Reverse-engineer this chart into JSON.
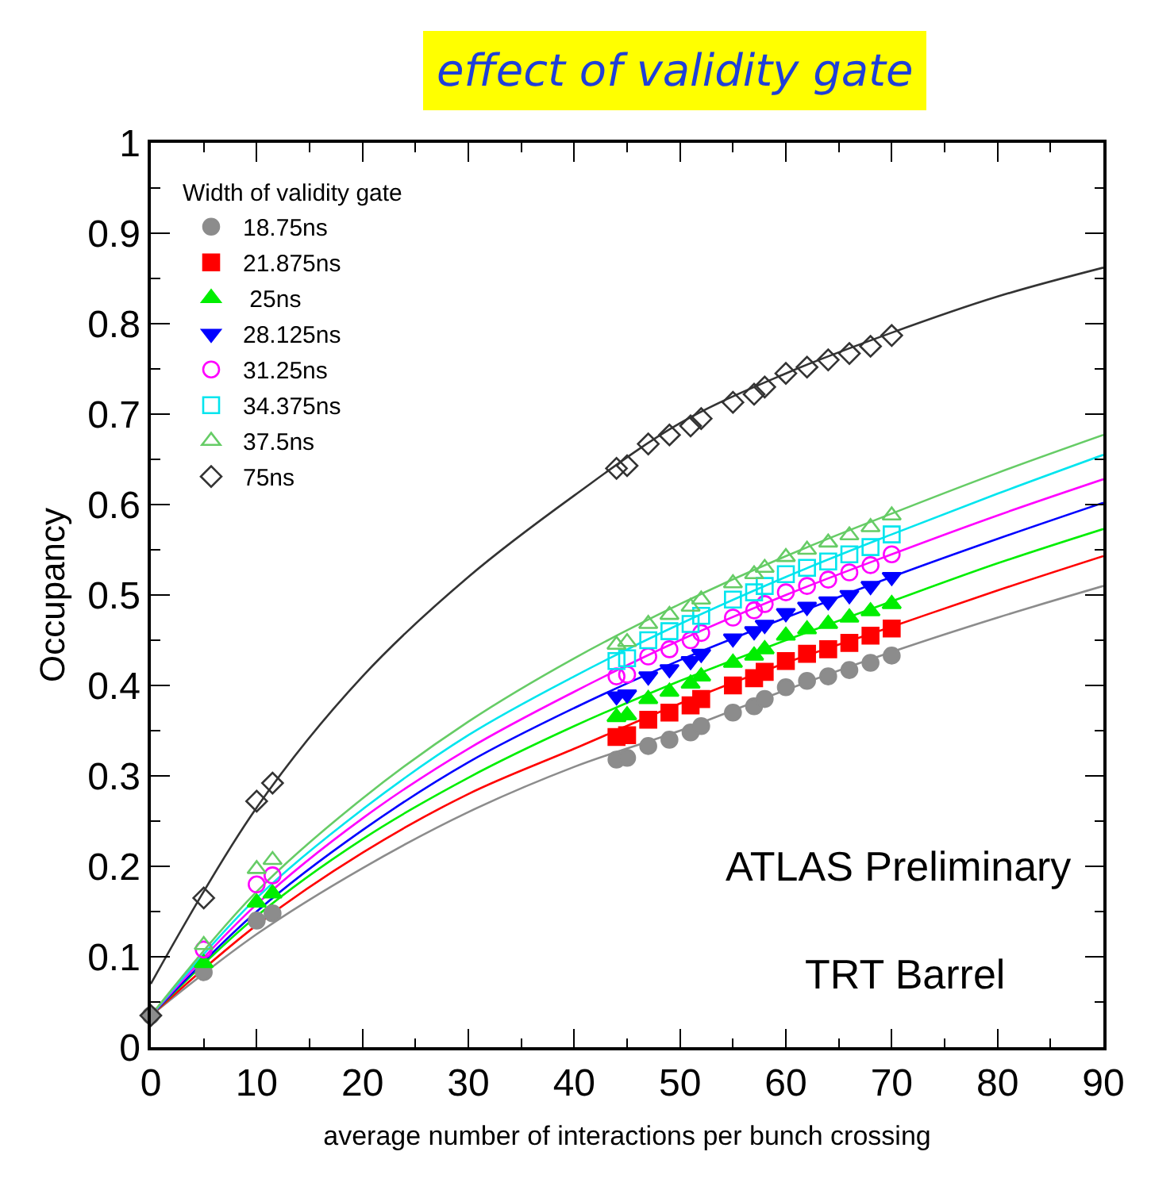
{
  "chart_data": {
    "type": "scatter",
    "title": "effect of validity gate",
    "xlabel": "average number of interactions per bunch crossing",
    "ylabel": "Occupancy",
    "legend_title": "Width of validity gate",
    "xlim": [
      0,
      90
    ],
    "xticks": [
      0,
      10,
      20,
      30,
      40,
      50,
      60,
      70,
      80,
      90
    ],
    "ylim": [
      0,
      1
    ],
    "yticks": [
      0,
      0.1,
      0.2,
      0.3,
      0.4,
      0.5,
      0.6,
      0.7,
      0.8,
      0.9,
      1
    ],
    "grid": false,
    "legend": "top left",
    "annotations": [
      "ATLAS Preliminary",
      "TRT Barrel"
    ],
    "series": [
      {
        "name": "18.75ns",
        "color": "#8c8c8c",
        "marker": "circle",
        "x": [
          0,
          5,
          10,
          11.5,
          44,
          45,
          47,
          49,
          51,
          52,
          55,
          57,
          58,
          60,
          62,
          64,
          66,
          68,
          70
        ],
        "values": [
          0.035,
          0.083,
          0.14,
          0.148,
          0.318,
          0.32,
          0.333,
          0.34,
          0.348,
          0.355,
          0.37,
          0.377,
          0.385,
          0.398,
          0.405,
          0.41,
          0.417,
          0.425,
          0.433
        ]
      },
      {
        "name": "21.875ns",
        "color": "#ff0000",
        "marker": "square",
        "x": [
          44,
          45,
          47,
          49,
          51,
          52,
          55,
          57,
          58,
          60,
          62,
          64,
          66,
          68,
          70
        ],
        "values": [
          0.343,
          0.345,
          0.362,
          0.37,
          0.378,
          0.385,
          0.4,
          0.408,
          0.415,
          0.427,
          0.435,
          0.44,
          0.447,
          0.455,
          0.463
        ]
      },
      {
        "name": " 25ns",
        "color": "#00ee00",
        "marker": "triangle",
        "x": [
          5,
          10,
          11.5,
          44,
          45,
          47,
          49,
          51,
          52,
          55,
          57,
          58,
          60,
          62,
          64,
          66,
          68,
          70
        ],
        "values": [
          0.093,
          0.16,
          0.17,
          0.365,
          0.367,
          0.385,
          0.393,
          0.402,
          0.41,
          0.425,
          0.433,
          0.44,
          0.455,
          0.462,
          0.468,
          0.475,
          0.482,
          0.49
        ]
      },
      {
        "name": "28.125ns",
        "color": "#0000ff",
        "marker": "triangle-down",
        "x": [
          44,
          45,
          47,
          49,
          51,
          52,
          55,
          57,
          58,
          60,
          62,
          64,
          66,
          68,
          70
        ],
        "values": [
          0.388,
          0.39,
          0.41,
          0.418,
          0.427,
          0.435,
          0.452,
          0.46,
          0.467,
          0.48,
          0.487,
          0.493,
          0.5,
          0.51,
          0.52
        ]
      },
      {
        "name": "31.25ns",
        "color": "#ff00ff",
        "marker": "circle-open",
        "x": [
          5,
          10,
          11.5,
          44,
          45,
          47,
          49,
          51,
          52,
          55,
          57,
          58,
          60,
          62,
          64,
          66,
          68,
          70
        ],
        "values": [
          0.108,
          0.18,
          0.19,
          0.41,
          0.412,
          0.432,
          0.44,
          0.45,
          0.458,
          0.475,
          0.483,
          0.49,
          0.503,
          0.51,
          0.517,
          0.525,
          0.533,
          0.545
        ]
      },
      {
        "name": "34.375ns",
        "color": "#00e5ee",
        "marker": "square-open",
        "x": [
          44,
          45,
          47,
          49,
          51,
          52,
          55,
          57,
          58,
          60,
          62,
          64,
          66,
          68,
          70
        ],
        "values": [
          0.427,
          0.43,
          0.45,
          0.46,
          0.468,
          0.477,
          0.495,
          0.503,
          0.51,
          0.523,
          0.53,
          0.537,
          0.545,
          0.553,
          0.567
        ]
      },
      {
        "name": "37.5ns",
        "color": "#66cc66",
        "marker": "triangle-open",
        "x": [
          5,
          10,
          11.5,
          44,
          45,
          47,
          49,
          51,
          52,
          55,
          57,
          58,
          60,
          62,
          64,
          66,
          68,
          70
        ],
        "values": [
          0.113,
          0.197,
          0.207,
          0.445,
          0.448,
          0.468,
          0.478,
          0.487,
          0.495,
          0.513,
          0.523,
          0.53,
          0.542,
          0.55,
          0.558,
          0.566,
          0.575,
          0.588
        ]
      },
      {
        "name": "75ns",
        "color": "#333333",
        "marker": "diamond-open",
        "x": [
          0,
          5,
          10,
          11.5,
          44,
          45,
          47,
          49,
          51,
          52,
          55,
          57,
          58,
          60,
          62,
          64,
          66,
          68,
          70
        ],
        "values": [
          0.035,
          0.165,
          0.272,
          0.292,
          0.64,
          0.643,
          0.667,
          0.677,
          0.687,
          0.695,
          0.713,
          0.722,
          0.73,
          0.745,
          0.752,
          0.76,
          0.767,
          0.775,
          0.787
        ]
      },
      {
        "type": "line",
        "color": "#8c8c8c",
        "x": [
          0,
          10,
          20,
          30,
          40,
          50,
          60,
          70,
          80,
          90
        ],
        "values": [
          0.035,
          0.125,
          0.198,
          0.26,
          0.31,
          0.35,
          0.395,
          0.437,
          0.475,
          0.51
        ]
      },
      {
        "type": "line",
        "color": "#ff0000",
        "x": [
          0,
          10,
          20,
          30,
          40,
          50,
          60,
          70,
          80,
          90
        ],
        "values": [
          0.035,
          0.135,
          0.215,
          0.28,
          0.33,
          0.38,
          0.425,
          0.465,
          0.505,
          0.543
        ]
      },
      {
        "type": "line",
        "color": "#00ee00",
        "x": [
          0,
          10,
          20,
          30,
          40,
          50,
          60,
          70,
          80,
          90
        ],
        "values": [
          0.035,
          0.145,
          0.23,
          0.298,
          0.355,
          0.405,
          0.45,
          0.493,
          0.535,
          0.573
        ]
      },
      {
        "type": "line",
        "color": "#0000ff",
        "x": [
          0,
          10,
          20,
          30,
          40,
          50,
          60,
          70,
          80,
          90
        ],
        "values": [
          0.035,
          0.15,
          0.24,
          0.315,
          0.375,
          0.428,
          0.475,
          0.52,
          0.562,
          0.602
        ]
      },
      {
        "type": "line",
        "color": "#ff00ff",
        "x": [
          0,
          10,
          20,
          30,
          40,
          50,
          60,
          70,
          80,
          90
        ],
        "values": [
          0.035,
          0.158,
          0.253,
          0.33,
          0.393,
          0.45,
          0.5,
          0.545,
          0.588,
          0.628
        ]
      },
      {
        "type": "line",
        "color": "#00e5ee",
        "x": [
          0,
          10,
          20,
          30,
          40,
          50,
          60,
          70,
          80,
          90
        ],
        "values": [
          0.035,
          0.165,
          0.263,
          0.345,
          0.41,
          0.468,
          0.52,
          0.567,
          0.612,
          0.655
        ]
      },
      {
        "type": "line",
        "color": "#66cc66",
        "x": [
          0,
          10,
          20,
          30,
          40,
          50,
          60,
          70,
          80,
          90
        ],
        "values": [
          0.035,
          0.172,
          0.275,
          0.36,
          0.43,
          0.49,
          0.543,
          0.59,
          0.635,
          0.677
        ]
      },
      {
        "type": "line",
        "color": "#333333",
        "x": [
          0,
          10,
          20,
          30,
          40,
          50,
          60,
          70,
          80,
          90
        ],
        "values": [
          0.07,
          0.265,
          0.41,
          0.52,
          0.61,
          0.69,
          0.745,
          0.79,
          0.83,
          0.862
        ]
      }
    ]
  }
}
